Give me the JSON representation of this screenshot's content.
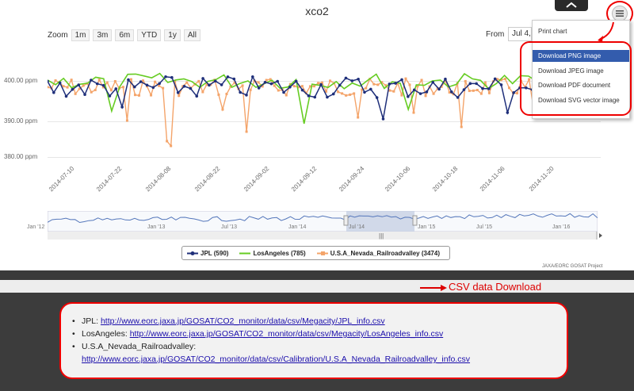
{
  "chart": {
    "title": "xco2",
    "zoom_label": "Zoom",
    "zoom_buttons": [
      "1m",
      "3m",
      "6m",
      "YTD",
      "1y",
      "All"
    ],
    "from_label": "From",
    "from_value": "Jul 4,",
    "y_labels": [
      "400.00 ppm",
      "390.00 ppm",
      "380.00 ppm"
    ],
    "x_ticks": [
      "2014-07-10",
      "2014-07-22",
      "2014-08-08",
      "2014-08-22",
      "2014-09-02",
      "2014-09-12",
      "2014-09-24",
      "2014-10-06",
      "2014-10-18",
      "2014-11-06",
      "2014-11-20"
    ],
    "navigator_ticks": [
      "Jan '12",
      "Jan '13",
      "Jul '13",
      "Jan '14",
      "Jul '14",
      "Jan '15",
      "Jul '15",
      "Jan '16"
    ],
    "legend": [
      {
        "label": "JPL (590)",
        "color": "#1f2f7a"
      },
      {
        "label": "LosAngeles (785)",
        "color": "#66cc22"
      },
      {
        "label": "U.S.A_Nevada_Railroadvalley (3474)",
        "color": "#f4a46a"
      }
    ],
    "credit": "JAXA/EORC GOSAT Project"
  },
  "export_menu": {
    "items": [
      "Print chart",
      "Download PNG image",
      "Download JPEG image",
      "Download PDF document",
      "Download SVG vector image"
    ],
    "active_index": 1
  },
  "csv": {
    "label": "CSV data Download",
    "entries": [
      {
        "name": "JPL:",
        "url": "http://www.eorc.jaxa.jp/GOSAT/CO2_monitor/data/csv/Megacity/JPL_info.csv"
      },
      {
        "name": "LosAngeles:",
        "url": "http://www.eorc.jaxa.jp/GOSAT/CO2_monitor/data/csv/Megacity/LosAngeles_info.csv"
      },
      {
        "name": "U.S.A_Nevada_Railroadvalley:",
        "url": "http://www.eorc.jaxa.jp/GOSAT/CO2_monitor/data/csv/Calibration/U.S.A_Nevada_Railroadvalley_info.csv"
      }
    ]
  }
}
